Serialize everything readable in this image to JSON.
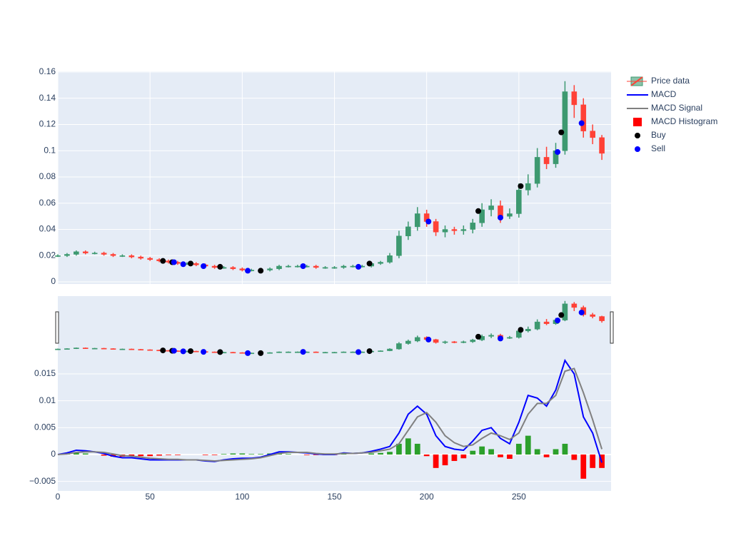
{
  "chart_data": [
    {
      "type": "candlestick",
      "name": "Price data",
      "x": [
        0,
        5,
        10,
        15,
        20,
        25,
        30,
        35,
        40,
        45,
        50,
        55,
        60,
        65,
        70,
        75,
        80,
        85,
        90,
        95,
        100,
        105,
        110,
        115,
        120,
        125,
        130,
        135,
        140,
        145,
        150,
        155,
        160,
        165,
        170,
        175,
        180,
        185,
        190,
        195,
        200,
        205,
        210,
        215,
        220,
        225,
        230,
        235,
        240,
        245,
        250,
        255,
        260,
        265,
        270,
        275,
        280,
        285,
        290,
        295
      ],
      "open": [
        0.0195,
        0.02,
        0.021,
        0.023,
        0.022,
        0.022,
        0.021,
        0.02,
        0.02,
        0.019,
        0.018,
        0.017,
        0.016,
        0.015,
        0.014,
        0.014,
        0.013,
        0.012,
        0.011,
        0.011,
        0.01,
        0.009,
        0.009,
        0.009,
        0.01,
        0.012,
        0.012,
        0.012,
        0.012,
        0.011,
        0.011,
        0.011,
        0.012,
        0.012,
        0.012,
        0.014,
        0.015,
        0.02,
        0.035,
        0.042,
        0.052,
        0.046,
        0.038,
        0.04,
        0.039,
        0.04,
        0.045,
        0.055,
        0.058,
        0.05,
        0.052,
        0.07,
        0.075,
        0.095,
        0.09,
        0.1,
        0.145,
        0.135,
        0.115,
        0.11
      ],
      "high": [
        0.021,
        0.022,
        0.024,
        0.024,
        0.023,
        0.023,
        0.022,
        0.021,
        0.021,
        0.02,
        0.019,
        0.018,
        0.017,
        0.016,
        0.015,
        0.015,
        0.014,
        0.013,
        0.012,
        0.012,
        0.011,
        0.01,
        0.01,
        0.011,
        0.013,
        0.013,
        0.013,
        0.013,
        0.013,
        0.012,
        0.012,
        0.013,
        0.013,
        0.013,
        0.015,
        0.016,
        0.022,
        0.039,
        0.046,
        0.057,
        0.055,
        0.048,
        0.043,
        0.042,
        0.043,
        0.048,
        0.06,
        0.063,
        0.062,
        0.056,
        0.075,
        0.082,
        0.102,
        0.103,
        0.106,
        0.153,
        0.15,
        0.14,
        0.12,
        0.112
      ],
      "low": [
        0.019,
        0.019,
        0.02,
        0.021,
        0.021,
        0.02,
        0.019,
        0.019,
        0.018,
        0.017,
        0.016,
        0.015,
        0.014,
        0.013,
        0.013,
        0.012,
        0.011,
        0.01,
        0.01,
        0.009,
        0.008,
        0.008,
        0.008,
        0.008,
        0.009,
        0.011,
        0.011,
        0.011,
        0.01,
        0.01,
        0.01,
        0.01,
        0.011,
        0.011,
        0.011,
        0.013,
        0.014,
        0.018,
        0.032,
        0.039,
        0.042,
        0.035,
        0.034,
        0.036,
        0.036,
        0.037,
        0.042,
        0.05,
        0.045,
        0.048,
        0.049,
        0.066,
        0.072,
        0.086,
        0.087,
        0.097,
        0.125,
        0.11,
        0.105,
        0.093
      ],
      "close": [
        0.02,
        0.021,
        0.023,
        0.022,
        0.022,
        0.021,
        0.02,
        0.02,
        0.019,
        0.018,
        0.017,
        0.016,
        0.015,
        0.014,
        0.014,
        0.013,
        0.012,
        0.011,
        0.011,
        0.01,
        0.009,
        0.009,
        0.009,
        0.01,
        0.012,
        0.012,
        0.012,
        0.012,
        0.011,
        0.011,
        0.011,
        0.012,
        0.012,
        0.012,
        0.014,
        0.015,
        0.02,
        0.035,
        0.042,
        0.052,
        0.046,
        0.038,
        0.04,
        0.039,
        0.04,
        0.045,
        0.055,
        0.058,
        0.05,
        0.052,
        0.07,
        0.075,
        0.095,
        0.09,
        0.1,
        0.145,
        0.135,
        0.115,
        0.11,
        0.098
      ],
      "increasing_color": "#3d9970",
      "decreasing_color": "#ff4136",
      "xlim": [
        0,
        300
      ],
      "xticks": [
        0,
        50,
        100,
        150,
        200,
        250
      ],
      "ylim": [
        -0.0016,
        0.1605
      ],
      "yticks": [
        0,
        0.02,
        0.04,
        0.06,
        0.08,
        0.1,
        0.12,
        0.14,
        0.16
      ],
      "grid": true,
      "rangeslider": true,
      "series": [
        {
          "name": "Buy",
          "type": "scatter",
          "color": "#000000",
          "x": [
            57,
            62,
            72,
            88,
            110,
            169,
            228,
            251,
            273
          ],
          "values": [
            0.016,
            0.015,
            0.014,
            0.0115,
            0.0085,
            0.014,
            0.054,
            0.073,
            0.114
          ]
        },
        {
          "name": "Sell",
          "type": "scatter",
          "color": "#0000ff",
          "x": [
            63,
            68,
            79,
            103,
            133,
            163,
            201,
            240,
            271,
            284
          ],
          "values": [
            0.015,
            0.0135,
            0.012,
            0.0085,
            0.012,
            0.0115,
            0.046,
            0.049,
            0.099,
            0.121
          ]
        }
      ]
    },
    {
      "type": "line",
      "x": [
        0,
        5,
        10,
        15,
        20,
        25,
        30,
        35,
        40,
        45,
        50,
        55,
        60,
        65,
        70,
        75,
        80,
        85,
        90,
        95,
        100,
        105,
        110,
        115,
        120,
        125,
        130,
        135,
        140,
        145,
        150,
        155,
        160,
        165,
        170,
        175,
        180,
        185,
        190,
        195,
        200,
        205,
        210,
        215,
        220,
        225,
        230,
        235,
        240,
        245,
        250,
        255,
        260,
        265,
        270,
        275,
        280,
        285,
        290,
        295
      ],
      "xlim": [
        0,
        300
      ],
      "xticks": [
        0,
        50,
        100,
        150,
        200,
        250
      ],
      "ylim": [
        -0.00677,
        0.02947
      ],
      "yticks": [
        {
          "value": -0.005,
          "label": "−0.005"
        },
        0,
        0.005,
        0.01,
        0.015
      ],
      "grid": true,
      "series": [
        {
          "name": "MACD",
          "type": "line",
          "color": "#0000ff",
          "values": [
            0,
            0.0003,
            0.0008,
            0.0007,
            0.0005,
            0.0002,
            -0.0003,
            -0.0006,
            -0.0006,
            -0.0008,
            -0.001,
            -0.001,
            -0.001,
            -0.001,
            -0.001,
            -0.001,
            -0.0012,
            -0.0013,
            -0.001,
            -0.0008,
            -0.0007,
            -0.0007,
            -0.0005,
            0,
            0.0005,
            0.0005,
            0.0004,
            0.0003,
            0.0001,
            0,
            0,
            0.0003,
            0.0002,
            0.0003,
            0.0006,
            0.001,
            0.0015,
            0.004,
            0.0075,
            0.009,
            0.0075,
            0.0035,
            0.0015,
            0.001,
            0.0008,
            0.0025,
            0.0045,
            0.005,
            0.003,
            0.002,
            0.006,
            0.011,
            0.0105,
            0.009,
            0.012,
            0.0175,
            0.015,
            0.007,
            0.004,
            -0.0015
          ]
        },
        {
          "name": "MACD Signal",
          "type": "line",
          "color": "#808080",
          "values": [
            0,
            0.0001,
            0.0004,
            0.0005,
            0.0005,
            0.0004,
            0.0001,
            -0.0002,
            -0.0003,
            -0.0005,
            -0.0007,
            -0.0008,
            -0.0009,
            -0.0009,
            -0.001,
            -0.001,
            -0.0011,
            -0.0012,
            -0.0011,
            -0.001,
            -0.0009,
            -0.0008,
            -0.0006,
            -0.0002,
            0.0002,
            0.0004,
            0.0004,
            0.0004,
            0.0002,
            0.0001,
            0.0001,
            0.0002,
            0.0002,
            0.0003,
            0.0004,
            0.0007,
            0.001,
            0.002,
            0.0045,
            0.007,
            0.0078,
            0.006,
            0.0035,
            0.0022,
            0.0015,
            0.0018,
            0.003,
            0.004,
            0.0035,
            0.0028,
            0.004,
            0.0075,
            0.0095,
            0.0095,
            0.011,
            0.0155,
            0.016,
            0.0115,
            0.0065,
            0.001
          ]
        },
        {
          "name": "MACD Histogram",
          "type": "bar",
          "color": "#ff0000",
          "positive_color": "#2ca02c",
          "values": [
            0,
            0.0002,
            0.0004,
            0.0002,
            0,
            -0.0002,
            -0.0004,
            -0.0004,
            -0.0003,
            -0.0003,
            -0.0003,
            -0.0002,
            -0.0001,
            -0.0001,
            0,
            0,
            -0.0001,
            -0.0001,
            0.0001,
            0.0002,
            0.0002,
            0.0001,
            0.0001,
            0.0002,
            0.0003,
            0.0001,
            0,
            -0.0001,
            -0.0001,
            -0.0001,
            -0.0001,
            0.0001,
            0,
            0,
            0.0002,
            0.0003,
            0.0005,
            0.002,
            0.003,
            0.002,
            -0.0003,
            -0.0025,
            -0.002,
            -0.0012,
            -0.0007,
            0.0007,
            0.0015,
            0.001,
            -0.0005,
            -0.0008,
            0.002,
            0.0035,
            0.001,
            -0.0005,
            0.001,
            0.002,
            -0.001,
            -0.0045,
            -0.0025,
            -0.0025
          ]
        }
      ]
    }
  ]
}
